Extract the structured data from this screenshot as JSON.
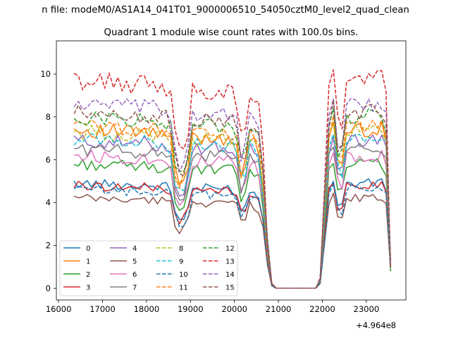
{
  "figure": {
    "suptitle": "n file: modeM0/AS1A14_041T01_9000006510_54050cztM0_level2_quad_clean",
    "title": "Quadrant 1 module wise count rates with 100.0s bins.",
    "x_offset_label": "+4.964e8"
  },
  "chart_data": {
    "type": "line",
    "title": "Quadrant 1 module wise count rates with 100.0s bins.",
    "xlabel": "",
    "ylabel": "",
    "x_offset": 496400000,
    "xlim": [
      15950,
      23900
    ],
    "ylim": [
      -0.55,
      11.55
    ],
    "x_ticks": [
      16000,
      17000,
      18000,
      19000,
      20000,
      21000,
      22000,
      23000
    ],
    "y_ticks": [
      0,
      2,
      4,
      6,
      8,
      10
    ],
    "x_tick_labels": [
      "16000",
      "17000",
      "18000",
      "19000",
      "20000",
      "21000",
      "22000",
      "23000"
    ],
    "y_tick_labels": [
      "0",
      "2",
      "4",
      "6",
      "8",
      "10"
    ],
    "grid": false,
    "legend": "lower-left, 4 columns",
    "x_start": 16350,
    "x_step": 100,
    "gaps_on_x": [],
    "series": [
      {
        "name": "0",
        "color": "#1f77b4",
        "dash": "solid",
        "base": 4.9,
        "gain": 0.5
      },
      {
        "name": "1",
        "color": "#ff7f0e",
        "dash": "solid",
        "base": 7.4,
        "gain": 0.8
      },
      {
        "name": "2",
        "color": "#2ca02c",
        "dash": "solid",
        "base": 5.8,
        "gain": 0.6
      },
      {
        "name": "3",
        "color": "#d62728",
        "dash": "solid",
        "base": 4.8,
        "gain": 0.5
      },
      {
        "name": "4",
        "color": "#9467bd",
        "dash": "solid",
        "base": 6.9,
        "gain": 0.75
      },
      {
        "name": "5",
        "color": "#8c564b",
        "dash": "solid",
        "base": 4.2,
        "gain": 0.45
      },
      {
        "name": "6",
        "color": "#e377c2",
        "dash": "solid",
        "base": 6.2,
        "gain": 0.7
      },
      {
        "name": "7",
        "color": "#7f7f7f",
        "dash": "solid",
        "base": 6.5,
        "gain": 0.7
      },
      {
        "name": "8",
        "color": "#bcbd22",
        "dash": "dashed",
        "base": 7.3,
        "gain": 0.8
      },
      {
        "name": "9",
        "color": "#17becf",
        "dash": "dashed",
        "base": 7.0,
        "gain": 0.75
      },
      {
        "name": "10",
        "color": "#1f77b4",
        "dash": "dashed",
        "base": 4.6,
        "gain": 0.5
      },
      {
        "name": "11",
        "color": "#ff7f0e",
        "dash": "dashed",
        "base": 7.6,
        "gain": 0.8
      },
      {
        "name": "12",
        "color": "#2ca02c",
        "dash": "dashed",
        "base": 8.0,
        "gain": 0.85
      },
      {
        "name": "13",
        "color": "#d62728",
        "dash": "dashed",
        "base": 9.7,
        "gain": 1.05
      },
      {
        "name": "14",
        "color": "#9467bd",
        "dash": "dashed",
        "base": 8.6,
        "gain": 0.9
      },
      {
        "name": "15",
        "color": "#8c564b",
        "dash": "dashed",
        "base": 8.2,
        "gain": 0.85
      }
    ],
    "profile": {
      "comment_free_shape": [
        [
          16350,
          1.0
        ],
        [
          18500,
          0.97
        ],
        [
          18600,
          0.9
        ],
        [
          18700,
          0.55
        ],
        [
          18800,
          0.75
        ],
        [
          18900,
          0.6
        ],
        [
          19000,
          0.95
        ],
        [
          20000,
          0.95
        ],
        [
          20100,
          0.85
        ],
        [
          20200,
          0.6
        ],
        [
          20300,
          0.95
        ],
        [
          20500,
          0.9
        ],
        [
          20600,
          0.85
        ],
        [
          20700,
          0.45
        ],
        [
          20800,
          0.05
        ],
        [
          20900,
          0.0
        ],
        [
          21900,
          0.0
        ],
        [
          22000,
          0.1
        ],
        [
          22100,
          0.85
        ],
        [
          22200,
          1.05
        ],
        [
          22300,
          1.05
        ],
        [
          22400,
          0.55
        ],
        [
          22500,
          1.0
        ],
        [
          23400,
          1.0
        ],
        [
          23500,
          0.9
        ],
        [
          23550,
          0.15
        ]
      ]
    }
  }
}
